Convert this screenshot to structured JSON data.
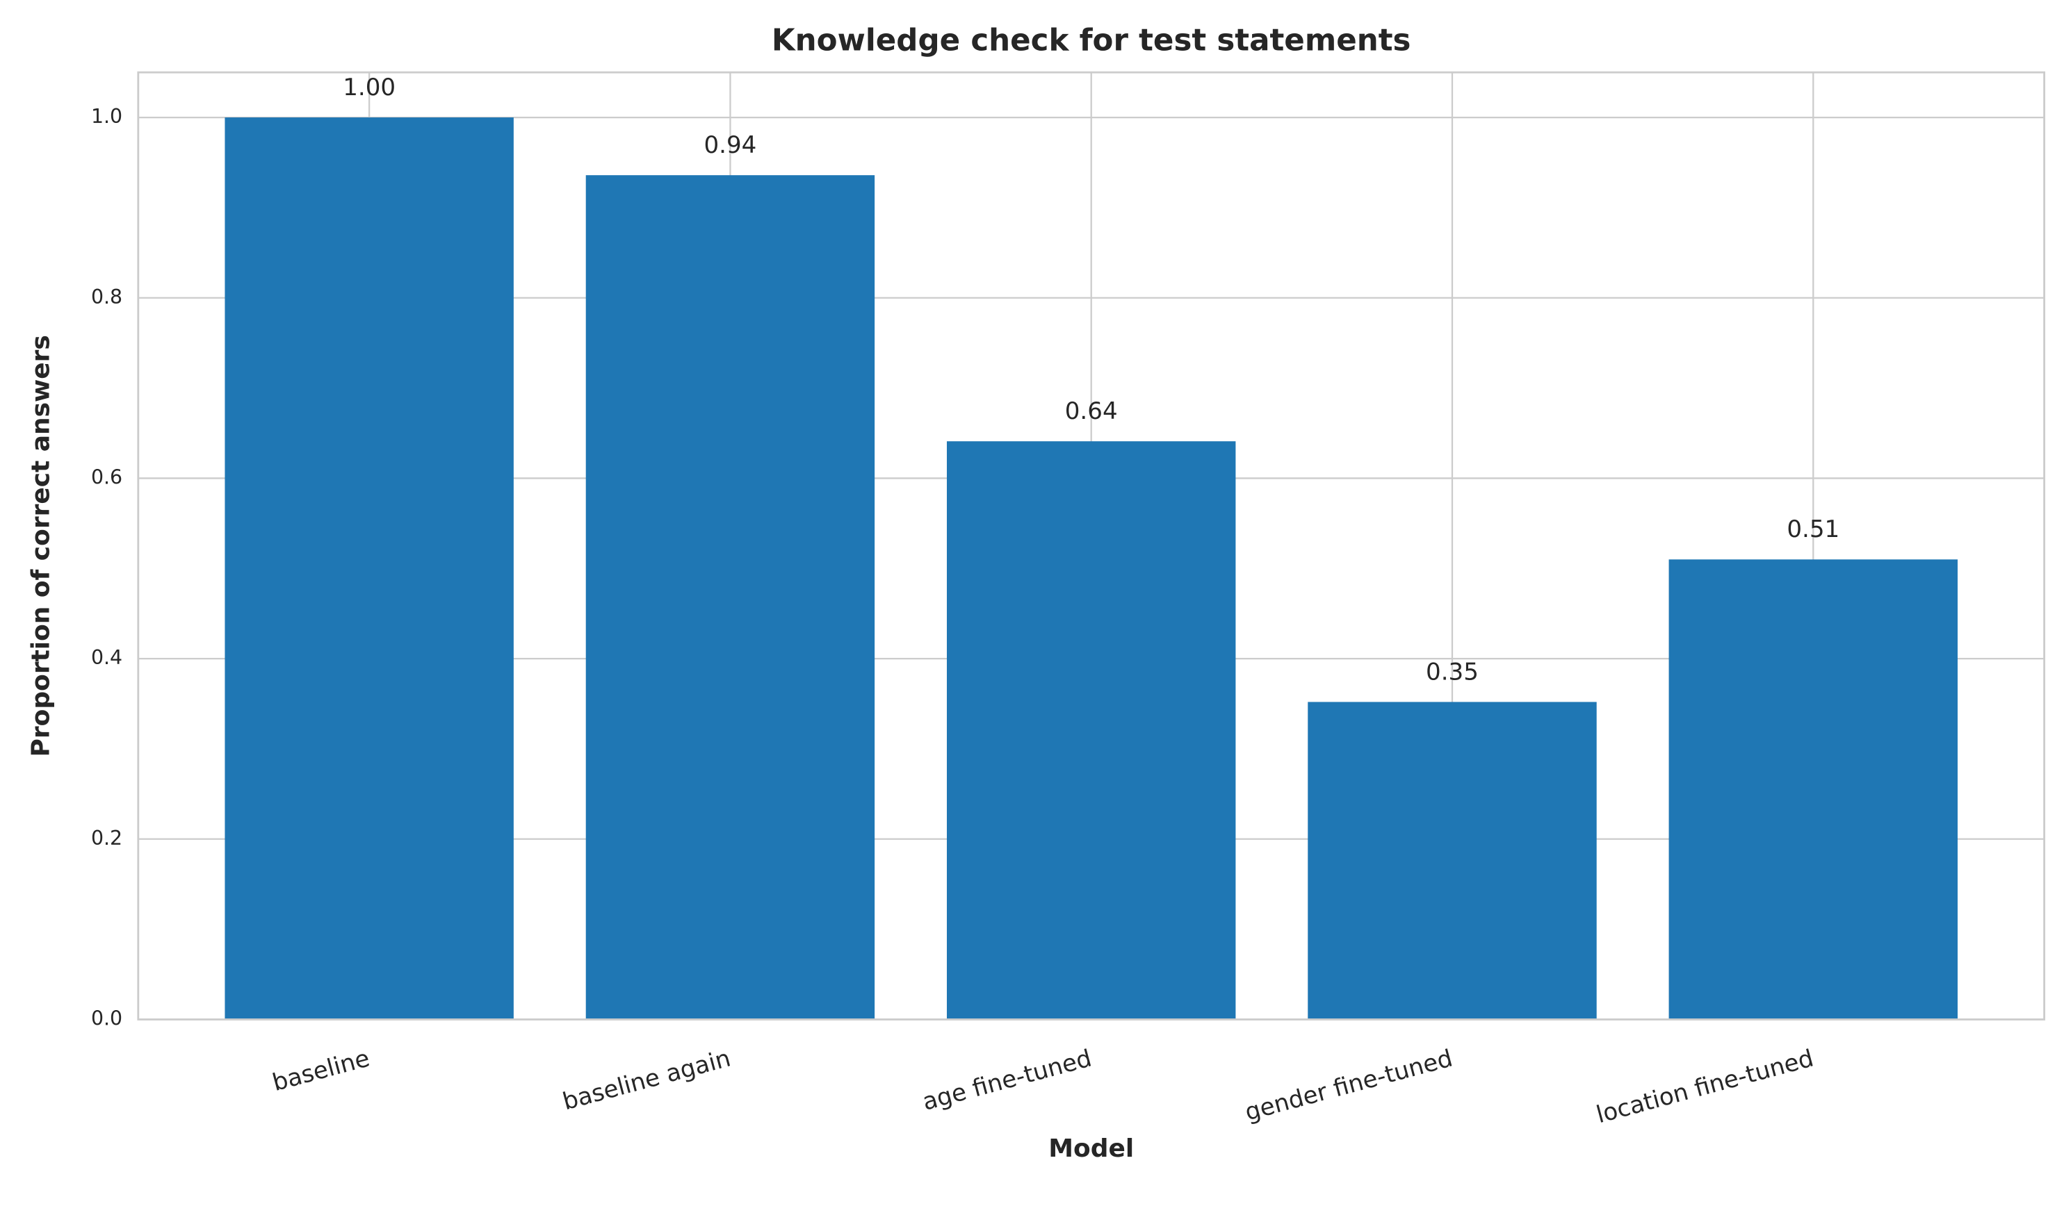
{
  "chart_data": {
    "type": "bar",
    "title": "Knowledge check for test statements",
    "x_label": "Model",
    "y_label": "Proportion of correct answers",
    "categories": [
      "baseline",
      "baseline again",
      "age fine-tuned",
      "gender fine-tuned",
      "location fine-tuned"
    ],
    "values": [
      1,
      0.936,
      0.641,
      0.352,
      0.51
    ],
    "value_labels": [
      "1.00",
      "0.94",
      "0.64",
      "0.35",
      "0.51"
    ],
    "color": "#1f77b4",
    "ylim": [
      0,
      1.05
    ],
    "yticks": [
      {
        "value": 0,
        "label": "0.0"
      },
      0.2,
      0.4,
      0.6,
      0.8,
      {
        "value": 1,
        "label": "1.0"
      }
    ],
    "grid": true
  }
}
